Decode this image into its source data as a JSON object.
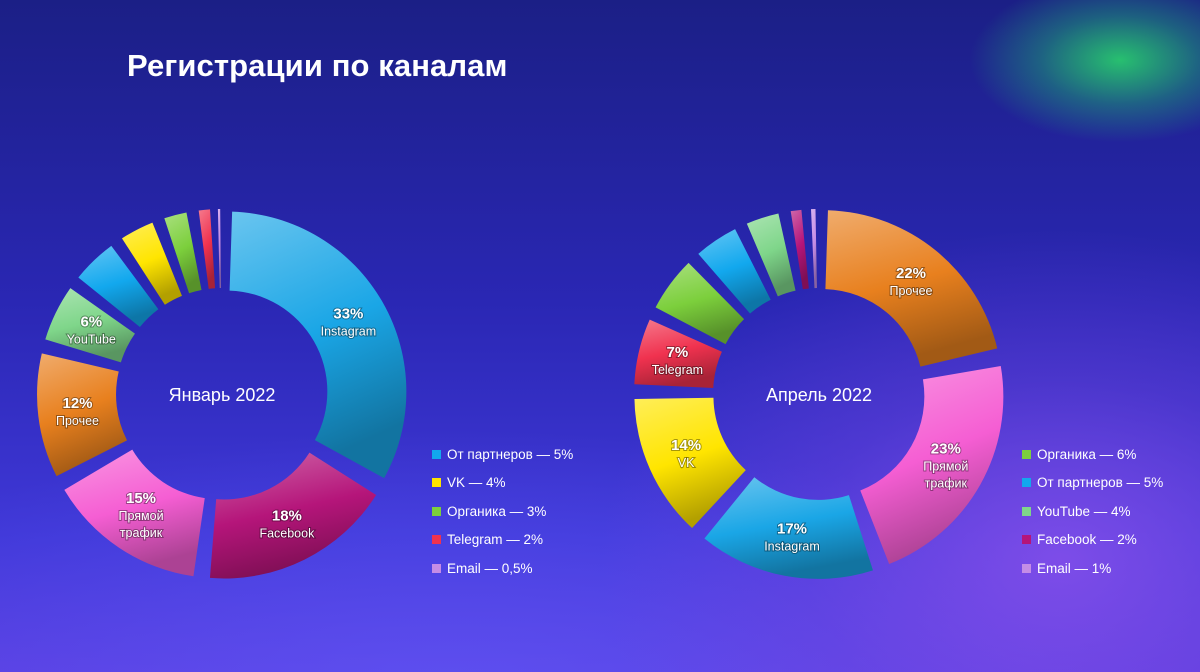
{
  "title": "Регистрации по каналам",
  "colors": {
    "instagram": "#1aa6e6",
    "facebook": "#b5157a",
    "pryamoy": "#f55ed3",
    "prochee": "#e8801e",
    "youtube": "#7fd68a",
    "partners": "#12a8ee",
    "vk": "#ffe500",
    "organika": "#7ccf3c",
    "telegram": "#f0324f",
    "email": "#c48ce6"
  },
  "chart_data": [
    {
      "type": "pie",
      "variant": "exploded-donut",
      "title": "Январь 2022",
      "slices": [
        {
          "name": "Instagram",
          "value": 33,
          "percent": "33%",
          "label_lines": [
            "Instagram"
          ],
          "color_key": "instagram",
          "labeled": true
        },
        {
          "name": "Facebook",
          "value": 18,
          "percent": "18%",
          "label_lines": [
            "Facebook"
          ],
          "color_key": "facebook",
          "labeled": true
        },
        {
          "name": "Прямой трафик",
          "value": 15,
          "percent": "15%",
          "label_lines": [
            "Прямой",
            "трафик"
          ],
          "color_key": "pryamoy",
          "labeled": true
        },
        {
          "name": "Прочее",
          "value": 12,
          "percent": "12%",
          "label_lines": [
            "Прочее"
          ],
          "color_key": "prochee",
          "labeled": true
        },
        {
          "name": "YouTube",
          "value": 6,
          "percent": "6%",
          "label_lines": [
            "YouTube"
          ],
          "color_key": "youtube",
          "labeled": true
        },
        {
          "name": "От партнеров",
          "value": 5,
          "percent": "5%",
          "label_lines": [],
          "color_key": "partners",
          "labeled": false
        },
        {
          "name": "VK",
          "value": 4,
          "percent": "4%",
          "label_lines": [],
          "color_key": "vk",
          "labeled": false
        },
        {
          "name": "Органика",
          "value": 3,
          "percent": "3%",
          "label_lines": [],
          "color_key": "organika",
          "labeled": false
        },
        {
          "name": "Telegram",
          "value": 2,
          "percent": "2%",
          "label_lines": [],
          "color_key": "telegram",
          "labeled": false
        },
        {
          "name": "Email",
          "value": 0.5,
          "percent": "0,5%",
          "label_lines": [],
          "color_key": "email",
          "labeled": false
        }
      ],
      "legend": [
        {
          "text": "От партнеров — 5%",
          "color_key": "partners"
        },
        {
          "text": "VK — 4%",
          "color_key": "vk"
        },
        {
          "text": "Органика — 3%",
          "color_key": "organika"
        },
        {
          "text": "Telegram — 2%",
          "color_key": "telegram"
        },
        {
          "text": "Email — 0,5%",
          "color_key": "email"
        }
      ]
    },
    {
      "type": "pie",
      "variant": "exploded-donut",
      "title": "Апрель 2022",
      "slices": [
        {
          "name": "Прочее",
          "value": 22,
          "percent": "22%",
          "label_lines": [
            "Прочее"
          ],
          "color_key": "prochee",
          "labeled": true
        },
        {
          "name": "Прямой трафик",
          "value": 23,
          "percent": "23%",
          "label_lines": [
            "Прямой",
            "трафик"
          ],
          "color_key": "pryamoy",
          "labeled": true
        },
        {
          "name": "Instagram",
          "value": 17,
          "percent": "17%",
          "label_lines": [
            "Instagram"
          ],
          "color_key": "instagram",
          "labeled": true
        },
        {
          "name": "VK",
          "value": 14,
          "percent": "14%",
          "label_lines": [
            "VK"
          ],
          "color_key": "vk",
          "labeled": true
        },
        {
          "name": "Telegram",
          "value": 7,
          "percent": "7%",
          "label_lines": [
            "Telegram"
          ],
          "color_key": "telegram",
          "labeled": true
        },
        {
          "name": "Органика",
          "value": 6,
          "percent": "6%",
          "label_lines": [],
          "color_key": "organika",
          "labeled": false
        },
        {
          "name": "От партнеров",
          "value": 5,
          "percent": "5%",
          "label_lines": [],
          "color_key": "partners",
          "labeled": false
        },
        {
          "name": "YouTube",
          "value": 4,
          "percent": "4%",
          "label_lines": [],
          "color_key": "youtube",
          "labeled": false
        },
        {
          "name": "Facebook",
          "value": 2,
          "percent": "2%",
          "label_lines": [],
          "color_key": "facebook",
          "labeled": false
        },
        {
          "name": "Email",
          "value": 1,
          "percent": "1%",
          "label_lines": [],
          "color_key": "email",
          "labeled": false
        }
      ],
      "legend": [
        {
          "text": "Органика — 6%",
          "color_key": "organika"
        },
        {
          "text": "От партнеров — 5%",
          "color_key": "partners"
        },
        {
          "text": "YouTube — 4%",
          "color_key": "youtube"
        },
        {
          "text": "Facebook — 2%",
          "color_key": "facebook"
        },
        {
          "text": "Email — 1%",
          "color_key": "email"
        }
      ]
    }
  ]
}
